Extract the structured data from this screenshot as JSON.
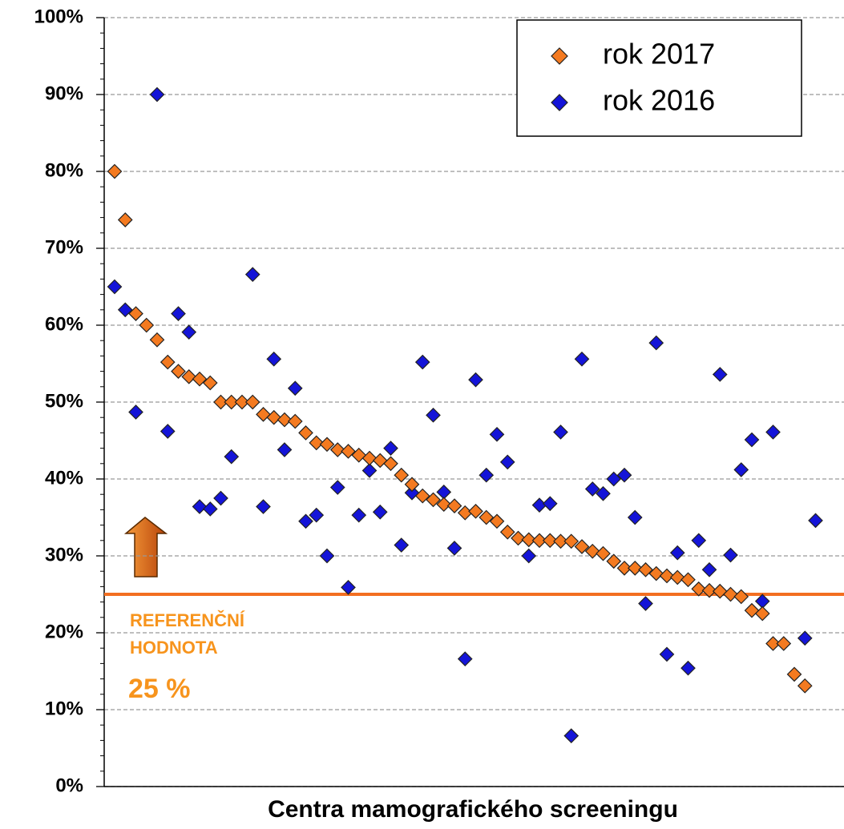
{
  "chart_data": {
    "type": "scatter",
    "x_label": "Centra mamografického screeningu",
    "categories": [
      null,
      null,
      null,
      null,
      null,
      null,
      null,
      null,
      null,
      null,
      null,
      null,
      null,
      null,
      null,
      null,
      null,
      null,
      null,
      null,
      null,
      null,
      null,
      null,
      null,
      null,
      null,
      null,
      null,
      null,
      null,
      null,
      null,
      null,
      null,
      null,
      null,
      null,
      null,
      null,
      null,
      null,
      null,
      null,
      null,
      null,
      null,
      null,
      null,
      null,
      null,
      null,
      null,
      null,
      null,
      null,
      null,
      null,
      null,
      null,
      null,
      null,
      null,
      null,
      null,
      null,
      null
    ],
    "series": [
      {
        "name": "rok 2017",
        "color": "#f47a20",
        "values": [
          80,
          73.7,
          61.5,
          60,
          58.1,
          55.2,
          54,
          53.3,
          53,
          52.5,
          50,
          50,
          50,
          50,
          48.4,
          48,
          47.7,
          47.5,
          46,
          44.7,
          44.5,
          43.8,
          43.6,
          43.1,
          42.7,
          42.4,
          42,
          40.5,
          39.3,
          37.8,
          37.3,
          36.7,
          36.5,
          35.6,
          35.8,
          35,
          34.5,
          33.1,
          32.3,
          32.1,
          32,
          32,
          31.9,
          31.9,
          31.2,
          30.6,
          30.3,
          29.3,
          28.4,
          28.4,
          28.2,
          27.7,
          27.4,
          27.2,
          26.9,
          25.7,
          25.5,
          25.4,
          25,
          24.7,
          22.9,
          22.5,
          18.6,
          18.6,
          14.6,
          13.1,
          null
        ]
      },
      {
        "name": "rok 2016",
        "color": "#1414d8",
        "values": [
          65,
          62,
          48.7,
          null,
          90,
          46.2,
          61.5,
          59.1,
          36.4,
          36.1,
          37.5,
          42.9,
          null,
          66.6,
          36.4,
          55.6,
          43.8,
          51.8,
          34.5,
          35.3,
          30,
          38.9,
          25.9,
          35.3,
          41.1,
          35.7,
          44,
          31.4,
          38.2,
          55.2,
          48.3,
          38.3,
          31,
          16.6,
          52.9,
          40.5,
          45.8,
          42.2,
          null,
          30,
          36.6,
          36.8,
          46.1,
          6.6,
          55.6,
          38.7,
          38.1,
          40,
          40.5,
          35,
          23.8,
          57.7,
          17.2,
          30.4,
          15.4,
          32,
          28.2,
          53.6,
          30.1,
          41.2,
          45.1,
          24.1,
          46.1,
          null,
          null,
          19.3,
          34.6
        ]
      }
    ],
    "ylim": [
      0,
      100
    ],
    "yticks": [
      {
        "value": 0,
        "label": "0%"
      },
      {
        "value": 10,
        "label": "10%"
      },
      {
        "value": 20,
        "label": "20%"
      },
      {
        "value": 30,
        "label": "30%"
      },
      {
        "value": 40,
        "label": "40%"
      },
      {
        "value": 50,
        "label": "50%"
      },
      {
        "value": 60,
        "label": "60%"
      },
      {
        "value": 70,
        "label": "70%"
      },
      {
        "value": 80,
        "label": "80%"
      },
      {
        "value": 90,
        "label": "90%"
      },
      {
        "value": 100,
        "label": "100%"
      }
    ],
    "grid": true,
    "legend": "upper right",
    "reference_line": {
      "value": 25,
      "color": "#f36f21"
    },
    "annotation": {
      "lines": [
        "REFERENČNÍ",
        "HODNOTA"
      ],
      "value_text": "25 %",
      "color": "#f7941d"
    }
  }
}
